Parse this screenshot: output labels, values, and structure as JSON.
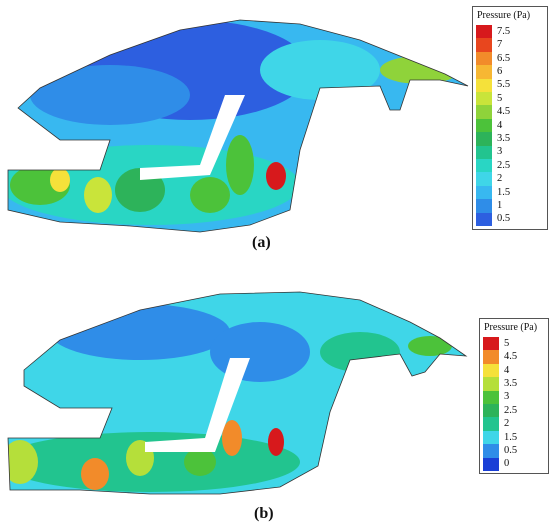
{
  "panels": [
    {
      "id": "a",
      "caption": "(a)",
      "legend": {
        "title": "Pressure (Pa)",
        "levels": [
          "7.5",
          "7",
          "6.5",
          "6",
          "5.5",
          "5",
          "4.5",
          "4",
          "3.5",
          "3",
          "2.5",
          "2",
          "1.5",
          "1",
          "0.5"
        ],
        "colors": [
          "#d7191c",
          "#e8461e",
          "#f28b2a",
          "#f7b733",
          "#f5e13a",
          "#c9e43a",
          "#8fd33a",
          "#4cc23a",
          "#2db35a",
          "#22c48f",
          "#29d6c4",
          "#3fd6e8",
          "#38b8f0",
          "#2f8de8",
          "#2d5fe0"
        ]
      }
    },
    {
      "id": "b",
      "caption": "(b)",
      "legend": {
        "title": "Pressure (Pa)",
        "levels": [
          "5",
          "4.5",
          "4",
          "3.5",
          "3",
          "2.5",
          "2",
          "1.5",
          "0.5",
          "0"
        ],
        "colors": [
          "#d7191c",
          "#f28b2a",
          "#f5e13a",
          "#b5df3a",
          "#4cc23a",
          "#2db35a",
          "#22c48f",
          "#3fd6e8",
          "#2f8de8",
          "#1a3fd6"
        ]
      }
    }
  ]
}
